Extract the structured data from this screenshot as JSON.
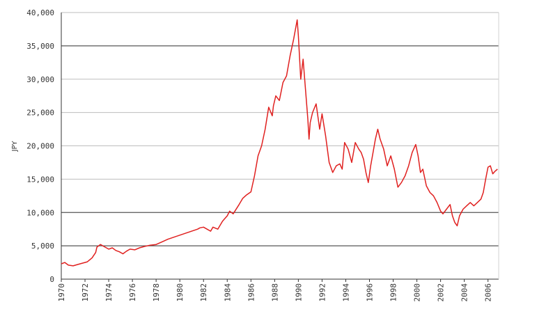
{
  "chart_data": {
    "type": "line",
    "title": "",
    "xlabel": "",
    "ylabel": "JPY",
    "xlim": [
      1970,
      2006.9
    ],
    "ylim": [
      0,
      40000
    ],
    "grid": true,
    "legend": "none",
    "line_color": "#e0201f",
    "y_ticks": [
      0,
      5000,
      10000,
      15000,
      20000,
      25000,
      30000,
      35000,
      40000
    ],
    "y_tick_labels": [
      "0",
      "5,000",
      "10,000",
      "15,000",
      "20,000",
      "25,000",
      "30,000",
      "35,000",
      "40,000"
    ],
    "x_ticks": [
      1970,
      1972,
      1974,
      1976,
      1978,
      1980,
      1982,
      1984,
      1986,
      1988,
      1990,
      1992,
      1994,
      1996,
      1998,
      2000,
      2002,
      2004,
      2006
    ],
    "x_tick_labels": [
      "1970",
      "1972",
      "1974",
      "1976",
      "1978",
      "1980",
      "1982",
      "1984",
      "1986",
      "1988",
      "1990",
      "1992",
      "1994",
      "1996",
      "1998",
      "2000",
      "2002",
      "2004",
      "2006"
    ],
    "series": [
      {
        "x": [
          1970.0,
          1970.3,
          1970.6,
          1971.0,
          1971.4,
          1971.8,
          1972.2,
          1972.6,
          1972.9,
          1973.0,
          1973.3,
          1973.6,
          1974.0,
          1974.3,
          1974.6,
          1974.9,
          1975.2,
          1975.5,
          1975.8,
          1976.2,
          1976.6,
          1977.0,
          1977.5,
          1978.0,
          1978.5,
          1979.0,
          1979.5,
          1980.0,
          1980.5,
          1981.0,
          1981.5,
          1981.7,
          1982.0,
          1982.3,
          1982.6,
          1982.8,
          1983.2,
          1983.6,
          1984.0,
          1984.2,
          1984.5,
          1985.0,
          1985.3,
          1985.6,
          1986.0,
          1986.3,
          1986.6,
          1986.9,
          1987.2,
          1987.5,
          1987.8,
          1987.9,
          1988.1,
          1988.4,
          1988.7,
          1989.0,
          1989.3,
          1989.6,
          1989.9,
          1990.0,
          1990.2,
          1990.4,
          1990.6,
          1990.8,
          1990.9,
          1991.0,
          1991.2,
          1991.5,
          1991.8,
          1992.0,
          1992.3,
          1992.6,
          1992.9,
          1993.2,
          1993.5,
          1993.7,
          1993.9,
          1994.2,
          1994.5,
          1994.8,
          1995.1,
          1995.3,
          1995.5,
          1995.7,
          1995.9,
          1996.1,
          1996.3,
          1996.5,
          1996.7,
          1996.9,
          1997.2,
          1997.5,
          1997.8,
          1998.1,
          1998.4,
          1998.7,
          1999.0,
          1999.3,
          1999.6,
          1999.9,
          2000.1,
          2000.3,
          2000.5,
          2000.8,
          2001.1,
          2001.4,
          2001.7,
          2002.0,
          2002.2,
          2002.5,
          2002.8,
          2003.0,
          2003.2,
          2003.4,
          2003.6,
          2003.9,
          2004.2,
          2004.5,
          2004.8,
          2005.1,
          2005.4,
          2005.6,
          2005.8,
          2006.0,
          2006.2,
          2006.4,
          2006.6,
          2006.8
        ],
        "y": [
          2300,
          2500,
          2100,
          2000,
          2200,
          2400,
          2600,
          3200,
          4000,
          4800,
          5200,
          4900,
          4500,
          4700,
          4300,
          4100,
          3800,
          4200,
          4500,
          4400,
          4700,
          4900,
          5100,
          5200,
          5600,
          6000,
          6300,
          6600,
          6900,
          7200,
          7500,
          7700,
          7800,
          7500,
          7200,
          7800,
          7500,
          8700,
          9500,
          10200,
          9800,
          11200,
          12100,
          12600,
          13100,
          15500,
          18500,
          20000,
          22500,
          25800,
          24500,
          26000,
          27500,
          26800,
          29500,
          30500,
          33500,
          36000,
          38900,
          36500,
          30000,
          33000,
          28500,
          24000,
          21000,
          23500,
          25000,
          26300,
          22500,
          24800,
          21500,
          17500,
          16000,
          17000,
          17300,
          16500,
          20500,
          19500,
          17500,
          20500,
          19500,
          19000,
          18000,
          16000,
          14500,
          17000,
          19000,
          21000,
          22500,
          21000,
          19500,
          17000,
          18500,
          16500,
          13800,
          14500,
          15500,
          17000,
          19000,
          20200,
          18500,
          16000,
          16500,
          14000,
          13000,
          12500,
          11500,
          10200,
          9800,
          10500,
          11200,
          9500,
          8500,
          8000,
          9500,
          10500,
          11000,
          11500,
          11000,
          11500,
          12000,
          13000,
          15000,
          16800,
          17000,
          15800,
          16200,
          16500
        ]
      }
    ]
  }
}
